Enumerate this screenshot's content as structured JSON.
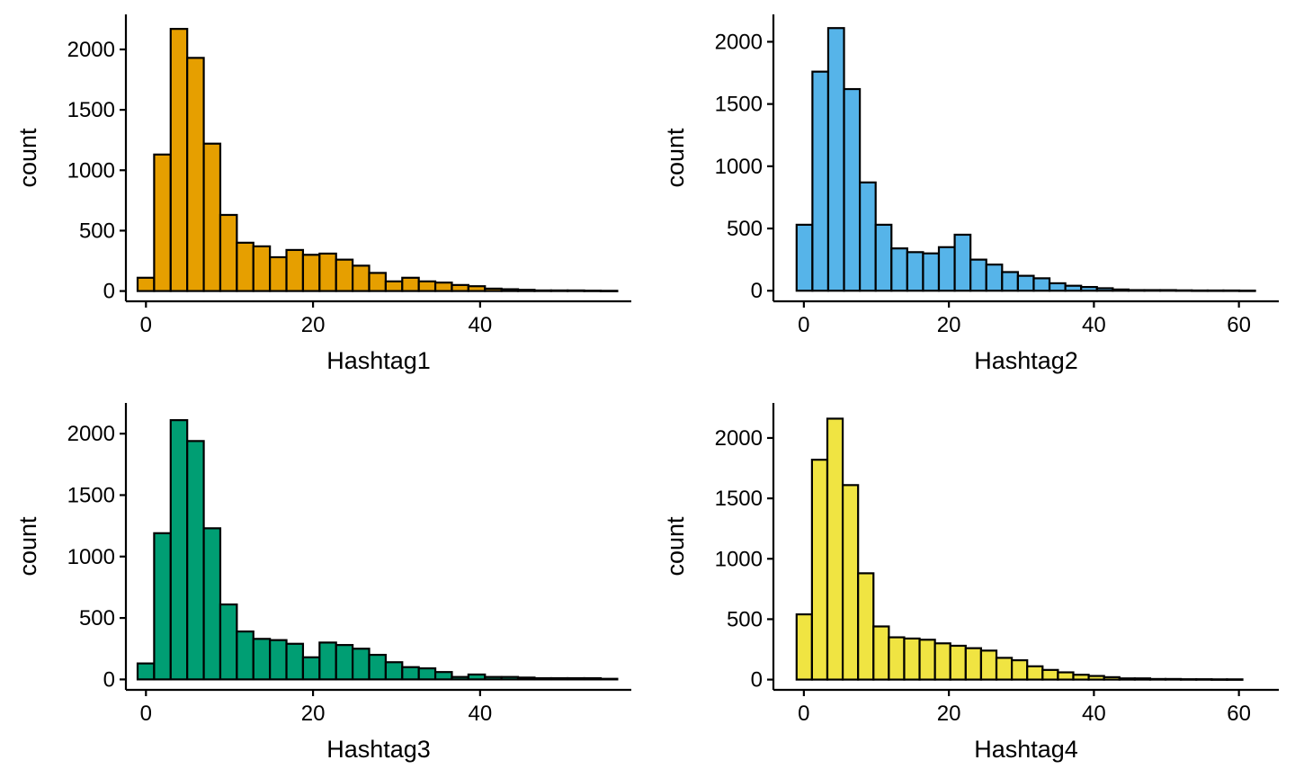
{
  "chart_data": [
    {
      "type": "bar",
      "xlabel": "Hashtag1",
      "ylabel": "count",
      "color": "#E69F00",
      "xlim": [
        -2.4,
        58.1
      ],
      "ylim": [
        -85,
        2290
      ],
      "xticks": [
        0,
        20,
        40
      ],
      "yticks": [
        0,
        500,
        1000,
        1500,
        2000
      ],
      "bin_width": 1.98,
      "bin_start": -1.0,
      "values": [
        110,
        1130,
        2170,
        1930,
        1220,
        630,
        400,
        370,
        280,
        340,
        300,
        310,
        260,
        210,
        150,
        80,
        110,
        80,
        70,
        50,
        40,
        20,
        15,
        10,
        5,
        5,
        5,
        3,
        2
      ]
    },
    {
      "type": "bar",
      "xlabel": "Hashtag2",
      "ylabel": "count",
      "color": "#56B4E9",
      "xlim": [
        -4.2,
        65.5
      ],
      "ylim": [
        -85,
        2220
      ],
      "xticks": [
        0,
        20,
        40,
        60
      ],
      "yticks": [
        0,
        500,
        1000,
        1500,
        2000
      ],
      "bin_width": 2.18,
      "bin_start": -1.0,
      "values": [
        530,
        1760,
        2110,
        1620,
        870,
        530,
        340,
        310,
        300,
        350,
        450,
        250,
        210,
        150,
        120,
        100,
        60,
        40,
        30,
        20,
        10,
        5,
        5,
        5,
        3,
        2,
        2,
        2,
        1
      ]
    },
    {
      "type": "bar",
      "xlabel": "Hashtag3",
      "ylabel": "count",
      "color": "#009E73",
      "xlim": [
        -2.4,
        58.1
      ],
      "ylim": [
        -85,
        2250
      ],
      "xticks": [
        0,
        20,
        40
      ],
      "yticks": [
        0,
        500,
        1000,
        1500,
        2000
      ],
      "bin_width": 1.98,
      "bin_start": -1.0,
      "values": [
        130,
        1190,
        2110,
        1940,
        1230,
        610,
        390,
        330,
        320,
        290,
        180,
        300,
        280,
        250,
        200,
        140,
        100,
        90,
        60,
        20,
        40,
        20,
        20,
        15,
        10,
        10,
        10,
        10,
        5
      ]
    },
    {
      "type": "bar",
      "xlabel": "Hashtag4",
      "ylabel": "count",
      "color": "#F0E442",
      "xlim": [
        -4.2,
        65.5
      ],
      "ylim": [
        -85,
        2290
      ],
      "xticks": [
        0,
        20,
        40,
        60
      ],
      "yticks": [
        0,
        500,
        1000,
        1500,
        2000
      ],
      "bin_width": 2.12,
      "bin_start": -1.0,
      "values": [
        540,
        1820,
        2160,
        1610,
        880,
        440,
        350,
        340,
        330,
        300,
        280,
        260,
        240,
        180,
        160,
        110,
        80,
        60,
        40,
        30,
        20,
        10,
        10,
        5,
        5,
        3,
        3,
        2,
        2
      ]
    }
  ]
}
